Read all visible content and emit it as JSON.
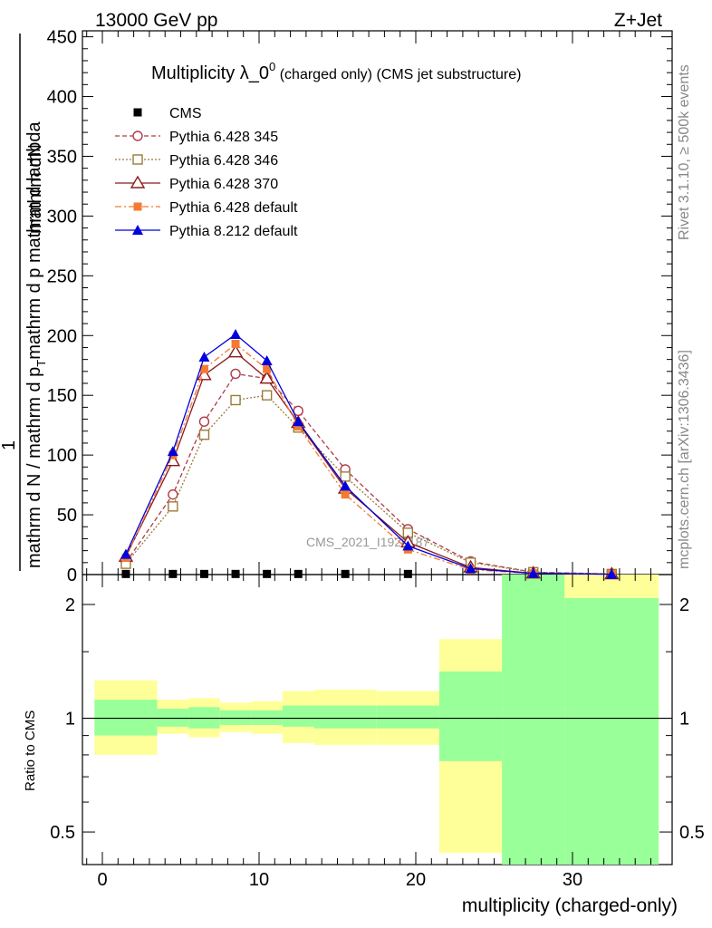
{
  "header": {
    "energy": "13000 GeV pp",
    "process": "Z+Jet",
    "rivet_note": "Rivet 3.1.10, ≥ 500k events",
    "mcplots_note": "mcplots.cern.ch [arXiv:1306.3436]",
    "watermark": "CMS_2021_I1920187"
  },
  "title": {
    "main": "Multiplicity λ_0",
    "sup": "0",
    "suffix": " (charged only) (CMS jet substructure)"
  },
  "ylabel": {
    "numerator": "mathrm dN",
    "num_prefix": "1",
    "denominator_main": "mathrm d N / mathrm d p",
    "denominator_mid": "mathrm d p",
    "denominator_end": " mathrm d lambda",
    "sub": "T"
  },
  "chart_data": [
    {
      "type": "line",
      "xlabel": "multiplicity (charged-only)",
      "xlim": [
        -1,
        36
      ],
      "ylim": [
        0,
        455
      ],
      "x_ticks": [
        0,
        10,
        20,
        30
      ],
      "y_ticks": [
        0,
        50,
        100,
        150,
        200,
        250,
        300,
        350,
        400,
        450
      ],
      "legend_position": "top-left",
      "series": [
        {
          "name": "CMS",
          "style": "data",
          "color": "#000000",
          "x": [
            1.5,
            4.5,
            6.5,
            8.5,
            10.5,
            12.5,
            15.5,
            19.5
          ],
          "values": [
            0.5,
            0.5,
            0.5,
            0.5,
            0.5,
            0.5,
            0.5,
            0.5
          ]
        },
        {
          "name": "Pythia 6.428 345",
          "style": "dashed-open-circle",
          "color": "#b03a48",
          "x": [
            1.5,
            4.5,
            6.5,
            8.5,
            10.5,
            12.5,
            15.5,
            19.5,
            23.5,
            27.5,
            32.5
          ],
          "values": [
            10,
            67,
            128,
            168,
            164,
            137,
            88,
            38,
            11,
            2,
            0.5
          ]
        },
        {
          "name": "Pythia 6.428 346",
          "style": "dotted-open-square",
          "color": "#9b7b3a",
          "x": [
            1.5,
            4.5,
            6.5,
            8.5,
            10.5,
            12.5,
            15.5,
            19.5,
            23.5,
            27.5,
            32.5
          ],
          "values": [
            9,
            57,
            117,
            146,
            150,
            123,
            82,
            35,
            10,
            2,
            0.5
          ]
        },
        {
          "name": "Pythia 6.428 370",
          "style": "solid-open-triangle",
          "color": "#8b1a1a",
          "x": [
            1.5,
            4.5,
            6.5,
            8.5,
            10.5,
            12.5,
            15.5,
            19.5,
            23.5,
            27.5,
            32.5
          ],
          "values": [
            15,
            95,
            167,
            186,
            164,
            127,
            72,
            27,
            6,
            1,
            0.3
          ]
        },
        {
          "name": "Pythia 6.428 default",
          "style": "dashdot-filled-square",
          "color": "#f47a32",
          "x": [
            1.5,
            4.5,
            6.5,
            8.5,
            10.5,
            12.5,
            15.5,
            19.5,
            23.5,
            27.5,
            32.5
          ],
          "values": [
            14,
            100,
            172,
            193,
            172,
            124,
            67,
            21,
            4,
            1,
            0.3
          ]
        },
        {
          "name": "Pythia 8.212 default",
          "style": "solid-filled-triangle",
          "color": "#0000dd",
          "x": [
            1.5,
            4.5,
            6.5,
            8.5,
            10.5,
            12.5,
            15.5,
            19.5,
            23.5,
            27.5,
            32.5
          ],
          "values": [
            17,
            103,
            182,
            201,
            179,
            128,
            74,
            24,
            5,
            1,
            0.3
          ]
        }
      ]
    },
    {
      "type": "area",
      "ylabel": "Ratio to CMS",
      "y_scale": "log",
      "ylim": [
        0.41,
        2.4
      ],
      "y_ticks": [
        0.5,
        1,
        2
      ],
      "reference_line": 1,
      "bands": [
        {
          "x_low": -0.5,
          "x_high": 3.5,
          "stat": [
            0.9,
            1.12
          ],
          "total": [
            0.8,
            1.26
          ]
        },
        {
          "x_low": 3.5,
          "x_high": 5.5,
          "stat": [
            0.95,
            1.06
          ],
          "total": [
            0.91,
            1.12
          ]
        },
        {
          "x_low": 5.5,
          "x_high": 7.5,
          "stat": [
            0.94,
            1.07
          ],
          "total": [
            0.89,
            1.13
          ]
        },
        {
          "x_low": 7.5,
          "x_high": 9.5,
          "stat": [
            0.96,
            1.05
          ],
          "total": [
            0.92,
            1.1
          ]
        },
        {
          "x_low": 9.5,
          "x_high": 11.5,
          "stat": [
            0.96,
            1.05
          ],
          "total": [
            0.91,
            1.11
          ]
        },
        {
          "x_low": 11.5,
          "x_high": 13.5,
          "stat": [
            0.95,
            1.08
          ],
          "total": [
            0.86,
            1.18
          ]
        },
        {
          "x_low": 13.5,
          "x_high": 17.5,
          "stat": [
            0.94,
            1.08
          ],
          "total": [
            0.85,
            1.19
          ]
        },
        {
          "x_low": 17.5,
          "x_high": 21.5,
          "stat": [
            0.94,
            1.08
          ],
          "total": [
            0.85,
            1.18
          ]
        },
        {
          "x_low": 21.5,
          "x_high": 25.5,
          "stat": [
            0.77,
            1.33
          ],
          "total": [
            0.44,
            1.62
          ]
        },
        {
          "x_low": 25.5,
          "x_high": 29.5,
          "stat": [
            0.41,
            2.4
          ],
          "total": [
            0.41,
            2.4
          ]
        },
        {
          "x_low": 29.5,
          "x_high": 35.5,
          "stat": [
            0.41,
            2.08
          ],
          "total": [
            0.41,
            2.4
          ]
        }
      ],
      "colors": {
        "stat": "#99ff99",
        "total": "#ffff99"
      }
    }
  ]
}
